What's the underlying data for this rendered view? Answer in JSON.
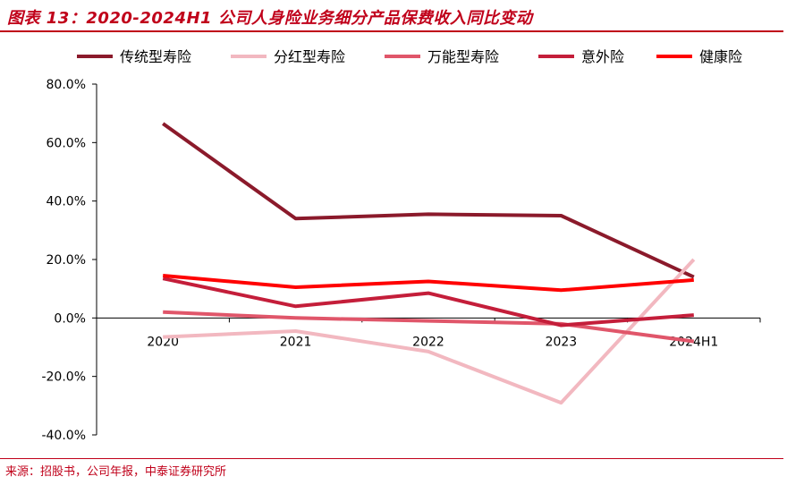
{
  "title": "图表 13：2020-2024H1 公司人身险业务细分产品保费收入同比变动",
  "source": "来源：招股书，公司年报，中泰证券研究所",
  "chart_data": {
    "type": "line",
    "categories": [
      "2020",
      "2021",
      "2022",
      "2023",
      "2024H1"
    ],
    "y_ticks": [
      "80.0%",
      "60.0%",
      "40.0%",
      "20.0%",
      "0.0%",
      "-20.0%",
      "-40.0%"
    ],
    "ylim": [
      -40,
      80
    ],
    "y_unit": "%",
    "grid": false,
    "legend_position": "top",
    "series": [
      {
        "name": "传统型寿险",
        "color": "#8b1a2b",
        "values": [
          66.5,
          34.0,
          35.5,
          35.0,
          14.0
        ]
      },
      {
        "name": "分红型寿险",
        "color": "#f2b8c0",
        "values": [
          -6.5,
          -4.5,
          -11.5,
          -29.0,
          20.0
        ]
      },
      {
        "name": "万能型寿险",
        "color": "#e0566a",
        "values": [
          2.0,
          0.0,
          -1.0,
          -2.0,
          -8.0
        ]
      },
      {
        "name": "意外险",
        "color": "#c41e3a",
        "values": [
          13.5,
          4.0,
          8.5,
          -2.5,
          1.0
        ]
      },
      {
        "name": "健康险",
        "color": "#ff0000",
        "values": [
          14.5,
          10.5,
          12.5,
          9.5,
          13.0
        ]
      }
    ]
  }
}
